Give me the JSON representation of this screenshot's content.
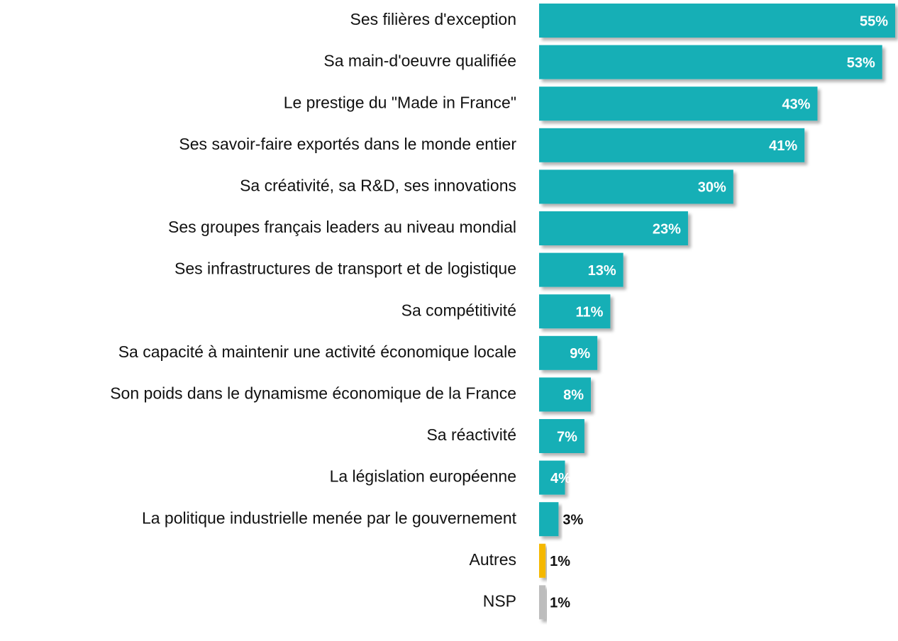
{
  "chart_data": {
    "type": "barh",
    "categories": [
      "Ses filières d'exception",
      "Sa main-d'oeuvre qualifiée",
      "Le prestige du \"Made in France\"",
      "Ses savoir-faire exportés dans le monde entier",
      "Sa créativité, sa R&D, ses innovations",
      "Ses groupes français leaders au niveau mondial",
      "Ses infrastructures de transport et de logistique",
      "Sa compétitivité",
      "Sa capacité à maintenir une activité économique locale",
      "Son poids dans le dynamisme économique de la France",
      "Sa réactivité",
      "La législation européenne",
      "La politique industrielle menée par le gouvernement",
      "Autres",
      "NSP"
    ],
    "values": [
      55,
      53,
      43,
      41,
      30,
      23,
      13,
      11,
      9,
      8,
      7,
      4,
      3,
      1,
      1
    ],
    "value_labels": [
      "55%",
      "53%",
      "43%",
      "41%",
      "30%",
      "23%",
      "13%",
      "11%",
      "9%",
      "8%",
      "7%",
      "4%",
      "3%",
      "1%",
      "1%"
    ],
    "colors": [
      "#13afb6",
      "#13afb6",
      "#13afb6",
      "#13afb6",
      "#13afb6",
      "#13afb6",
      "#13afb6",
      "#13afb6",
      "#13afb6",
      "#13afb6",
      "#13afb6",
      "#13afb6",
      "#13afb6",
      "#f5b800",
      "#bdbdbd"
    ]
  }
}
